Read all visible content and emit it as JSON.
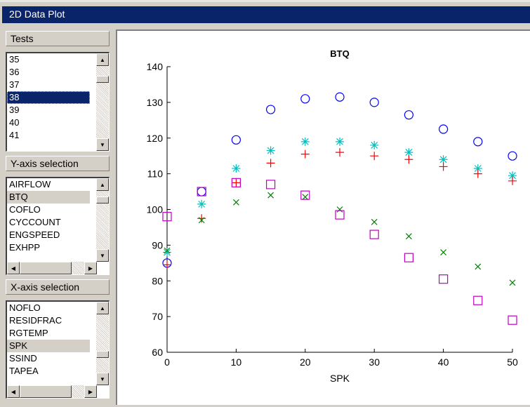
{
  "window": {
    "title": "2D Data Plot"
  },
  "tests": {
    "header": "Tests",
    "items": [
      "35",
      "36",
      "37",
      "38",
      "39",
      "40",
      "41"
    ],
    "selected": "38"
  },
  "y_axis": {
    "header": "Y-axis selection",
    "items": [
      "AIRFLOW",
      "BTQ",
      "COFLO",
      "CYCCOUNT",
      "ENGSPEED",
      "EXHPP"
    ],
    "selected": "BTQ"
  },
  "x_axis": {
    "header": "X-axis selection",
    "items": [
      "NOFLO",
      "RESIDFRAC",
      "RGTEMP",
      "SPK",
      "SSIND",
      "TAPEA"
    ],
    "selected": "SPK"
  },
  "chart_data": {
    "type": "scatter",
    "title": "BTQ",
    "xlabel": "SPK",
    "ylabel": "",
    "xlim": [
      0,
      50
    ],
    "ylim": [
      60,
      140
    ],
    "xticks": [
      0,
      10,
      20,
      30,
      40,
      50
    ],
    "yticks": [
      60,
      70,
      80,
      90,
      100,
      110,
      120,
      130,
      140
    ],
    "grid": false,
    "x": [
      0,
      5,
      10,
      15,
      20,
      25,
      30,
      35,
      40,
      45,
      50
    ],
    "series": [
      {
        "marker": "circle",
        "color": "#0000ff",
        "values": [
          85,
          105,
          119.5,
          128,
          131,
          131.5,
          130,
          126.5,
          122.5,
          119,
          115
        ]
      },
      {
        "marker": "star",
        "color": "#00c0c0",
        "values": [
          88,
          101.5,
          111.5,
          116.5,
          119,
          119,
          118,
          116,
          114,
          111.5,
          109.5
        ]
      },
      {
        "marker": "plus",
        "color": "#ff0000",
        "values": [
          84.5,
          97.5,
          107.5,
          113,
          115.5,
          116,
          115,
          114,
          112,
          110,
          108
        ]
      },
      {
        "marker": "x",
        "color": "#008000",
        "values": [
          88.5,
          97,
          102,
          104,
          103.5,
          100,
          96.5,
          92.5,
          88,
          84,
          79.5
        ]
      },
      {
        "marker": "square",
        "color": "#c000c0",
        "values": [
          98,
          105,
          107.5,
          107,
          104,
          98.5,
          93,
          86.5,
          80.5,
          74.5,
          69
        ]
      }
    ]
  }
}
